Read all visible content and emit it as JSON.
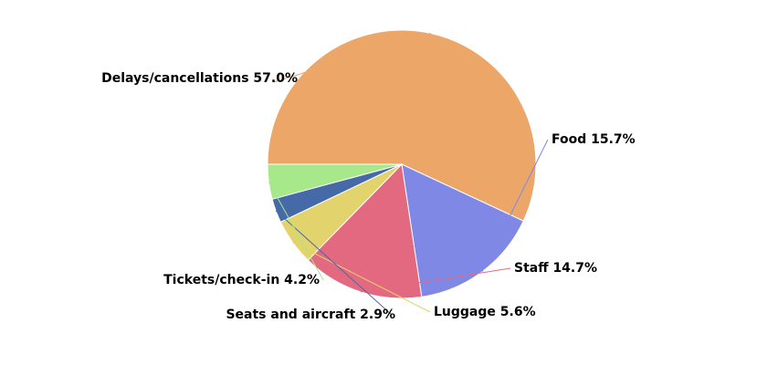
{
  "chart_data": {
    "type": "pie",
    "slices": [
      {
        "label": "Delays/cancellations",
        "value": 57.0,
        "display": "Delays/cancellations 57.0%",
        "color": "#eba668"
      },
      {
        "label": "Food",
        "value": 15.7,
        "display": "Food 15.7%",
        "color": "#8088e6"
      },
      {
        "label": "Staff",
        "value": 14.7,
        "display": "Staff 14.7%",
        "color": "#e36981"
      },
      {
        "label": "Luggage",
        "value": 5.6,
        "display": "Luggage 5.6%",
        "color": "#e3d36c"
      },
      {
        "label": "Seats and aircraft",
        "value": 2.9,
        "display": "Seats and aircraft 2.9%",
        "color": "#4669a8"
      },
      {
        "label": "Tickets/check-in",
        "value": 4.2,
        "display": "Tickets/check-in 4.2%",
        "color": "#a6e88a"
      }
    ],
    "start_angle_deg": 180,
    "direction": "clockwise",
    "legend": "none",
    "labels": "outside with connector lines"
  }
}
